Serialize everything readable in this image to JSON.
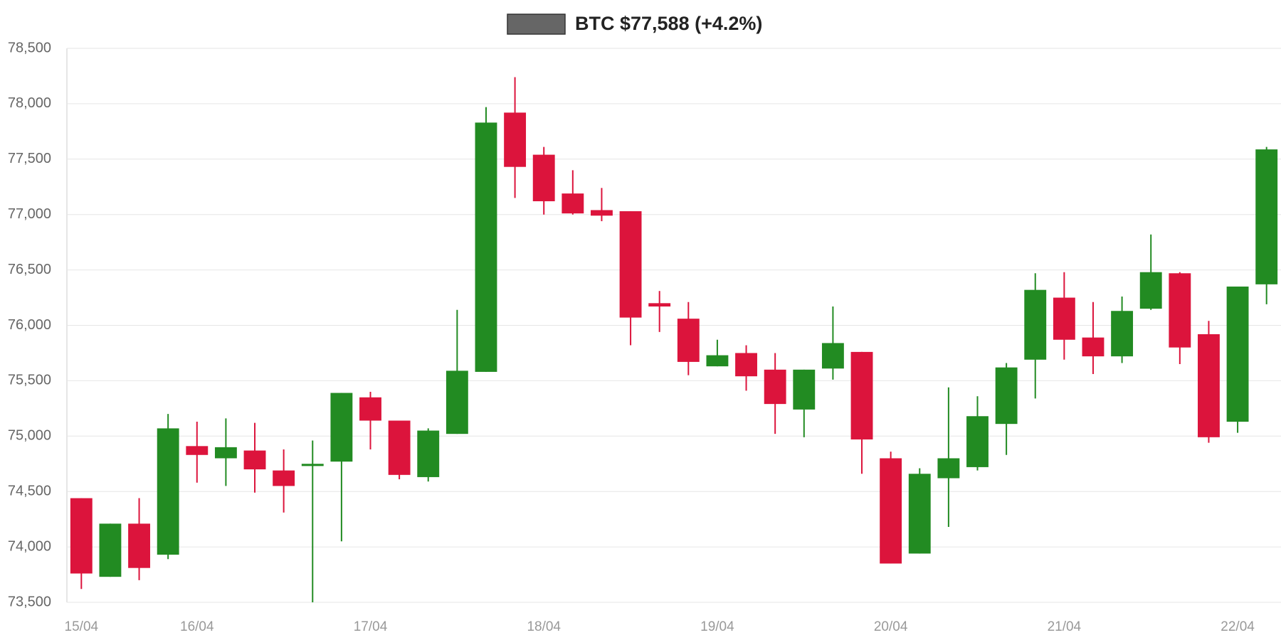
{
  "chart_data": {
    "type": "candlestick",
    "categories": [
      "15/04",
      null,
      null,
      null,
      "16/04",
      null,
      null,
      null,
      null,
      null,
      "17/04",
      null,
      null,
      null,
      null,
      null,
      "18/04",
      null,
      null,
      null,
      null,
      null,
      "19/04",
      null,
      null,
      null,
      null,
      null,
      "20/04",
      null,
      null,
      null,
      null,
      null,
      "21/04",
      null,
      null,
      null,
      null,
      null,
      "22/04",
      null
    ],
    "series": [
      {
        "name": "BTC $77,588 (+4.2%)",
        "color": "#666666",
        "up_color": "#228b22",
        "down_color": "#dc143c",
        "open": [
          74440,
          73730,
          74210,
          73930,
          74910,
          74800,
          74870,
          74690,
          74730,
          74770,
          75350,
          75140,
          74630,
          75020,
          75580,
          77920,
          77540,
          77190,
          77040,
          77030,
          76200,
          76060,
          75630,
          75750,
          75600,
          75240,
          75610,
          75760,
          74800,
          73940,
          74620,
          74720,
          75110,
          75690,
          76250,
          75890,
          75720,
          76150,
          76470,
          75920,
          75130,
          76370
        ],
        "high": [
          74440,
          74210,
          74440,
          75200,
          75130,
          75160,
          75120,
          74880,
          74960,
          75390,
          75400,
          75140,
          75070,
          76140,
          77970,
          78240,
          77610,
          77400,
          77240,
          77030,
          76310,
          76210,
          75870,
          75820,
          75750,
          75600,
          76170,
          75760,
          74860,
          74710,
          75440,
          75360,
          75660,
          76470,
          76480,
          76210,
          76260,
          76820,
          76480,
          76040,
          76350,
          77610
        ],
        "low": [
          73620,
          73730,
          73700,
          73890,
          74580,
          74550,
          74490,
          74310,
          73500,
          74050,
          74880,
          74610,
          74590,
          75020,
          75580,
          77150,
          77000,
          77000,
          76940,
          75820,
          75940,
          75550,
          75630,
          75410,
          75020,
          74990,
          75510,
          74660,
          73850,
          73940,
          74180,
          74690,
          74830,
          75340,
          75690,
          75560,
          75660,
          76140,
          75650,
          74940,
          75030,
          76190
        ],
        "close": [
          73760,
          74210,
          73810,
          75070,
          74830,
          74900,
          74700,
          74550,
          74750,
          75390,
          75140,
          74650,
          75050,
          75590,
          77830,
          77430,
          77120,
          77010,
          76990,
          76070,
          76170,
          75670,
          75730,
          75540,
          75290,
          75600,
          75840,
          74970,
          73850,
          74660,
          74800,
          75180,
          75620,
          76320,
          75870,
          75720,
          76130,
          76480,
          75800,
          74990,
          76350,
          77588
        ]
      }
    ],
    "ylim": [
      73500,
      78500
    ],
    "yticks": [
      {
        "value": 73500,
        "label": "73,500"
      },
      {
        "value": 74000,
        "label": "74,000"
      },
      {
        "value": 74500,
        "label": "74,500"
      },
      {
        "value": 75000,
        "label": "75,000"
      },
      {
        "value": 75500,
        "label": "75,500"
      },
      {
        "value": 76000,
        "label": "76,000"
      },
      {
        "value": 76500,
        "label": "76,500"
      },
      {
        "value": 77000,
        "label": "77,000"
      },
      {
        "value": 77500,
        "label": "77,500"
      },
      {
        "value": 78000,
        "label": "78,000"
      },
      {
        "value": 78500,
        "label": "78,500"
      }
    ],
    "grid": true,
    "legend": "top"
  }
}
